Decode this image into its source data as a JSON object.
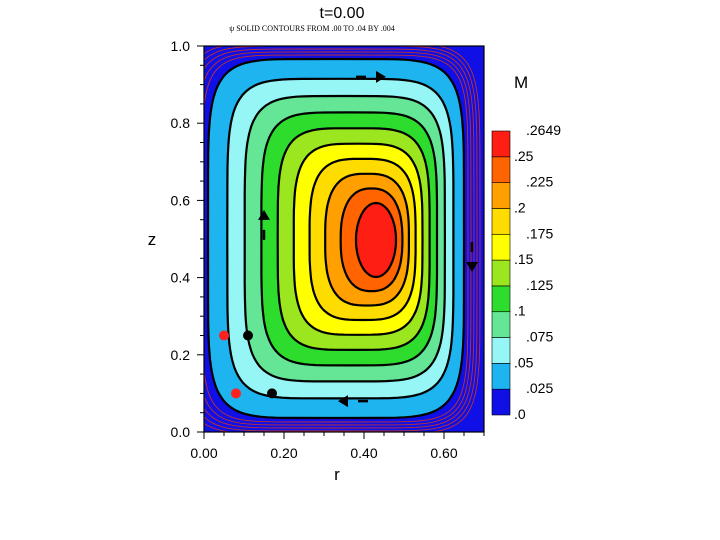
{
  "chart_data": {
    "type": "heatmap",
    "title": "t=0.00",
    "subtitle": "ψ SOLID CONTOURS FROM .00 TO .04 BY .004",
    "xlabel": "r",
    "ylabel": "z",
    "xlim": [
      0.0,
      0.7
    ],
    "ylim": [
      0.0,
      1.0
    ],
    "x_ticks": [
      "0.00",
      "0.20",
      "0.40",
      "0.60"
    ],
    "x_tick_values": [
      0.0,
      0.2,
      0.4,
      0.6
    ],
    "y_ticks": [
      "0.0",
      "0.2",
      "0.4",
      "0.6",
      "0.8",
      "1.0"
    ],
    "y_tick_values": [
      0.0,
      0.2,
      0.4,
      0.6,
      0.8,
      1.0
    ],
    "grid": false,
    "colorbar": {
      "title": "M",
      "levels": [
        0.0,
        0.025,
        0.05,
        0.075,
        0.1,
        0.125,
        0.15,
        0.175,
        0.2,
        0.225,
        0.25,
        0.2649
      ],
      "labels": [
        ".0",
        ".025",
        ".05",
        ".075",
        ".1",
        ".125",
        ".15",
        ".175",
        ".2",
        ".225",
        ".25",
        ".2649"
      ],
      "colors": [
        "#0f0fe6",
        "#1eb4f0",
        "#96f5f5",
        "#64e696",
        "#2ddc2d",
        "#9be61e",
        "#ffff00",
        "#ffdc00",
        "#ffa000",
        "#ff6400",
        "#ff1e14"
      ]
    },
    "field_center": {
      "r": 0.44,
      "z": 0.51
    },
    "field_max": 0.2649,
    "psi_contour_levels": [
      0.004,
      0.008,
      0.012,
      0.016,
      0.02,
      0.024,
      0.028,
      0.032,
      0.036,
      0.04
    ],
    "particle_markers": [
      {
        "color": "#ff2020",
        "r": 0.05,
        "z": 0.25
      },
      {
        "color": "#ff2020",
        "r": 0.08,
        "z": 0.1
      },
      {
        "color": "#000000",
        "r": 0.11,
        "z": 0.25
      },
      {
        "color": "#000000",
        "r": 0.17,
        "z": 0.1
      }
    ],
    "flow_arrows": [
      {
        "r": 0.44,
        "z": 0.92,
        "direction": "right"
      },
      {
        "r": 0.15,
        "z": 0.56,
        "direction": "up"
      },
      {
        "r": 0.67,
        "z": 0.43,
        "direction": "down"
      },
      {
        "r": 0.35,
        "z": 0.08,
        "direction": "left"
      }
    ]
  }
}
